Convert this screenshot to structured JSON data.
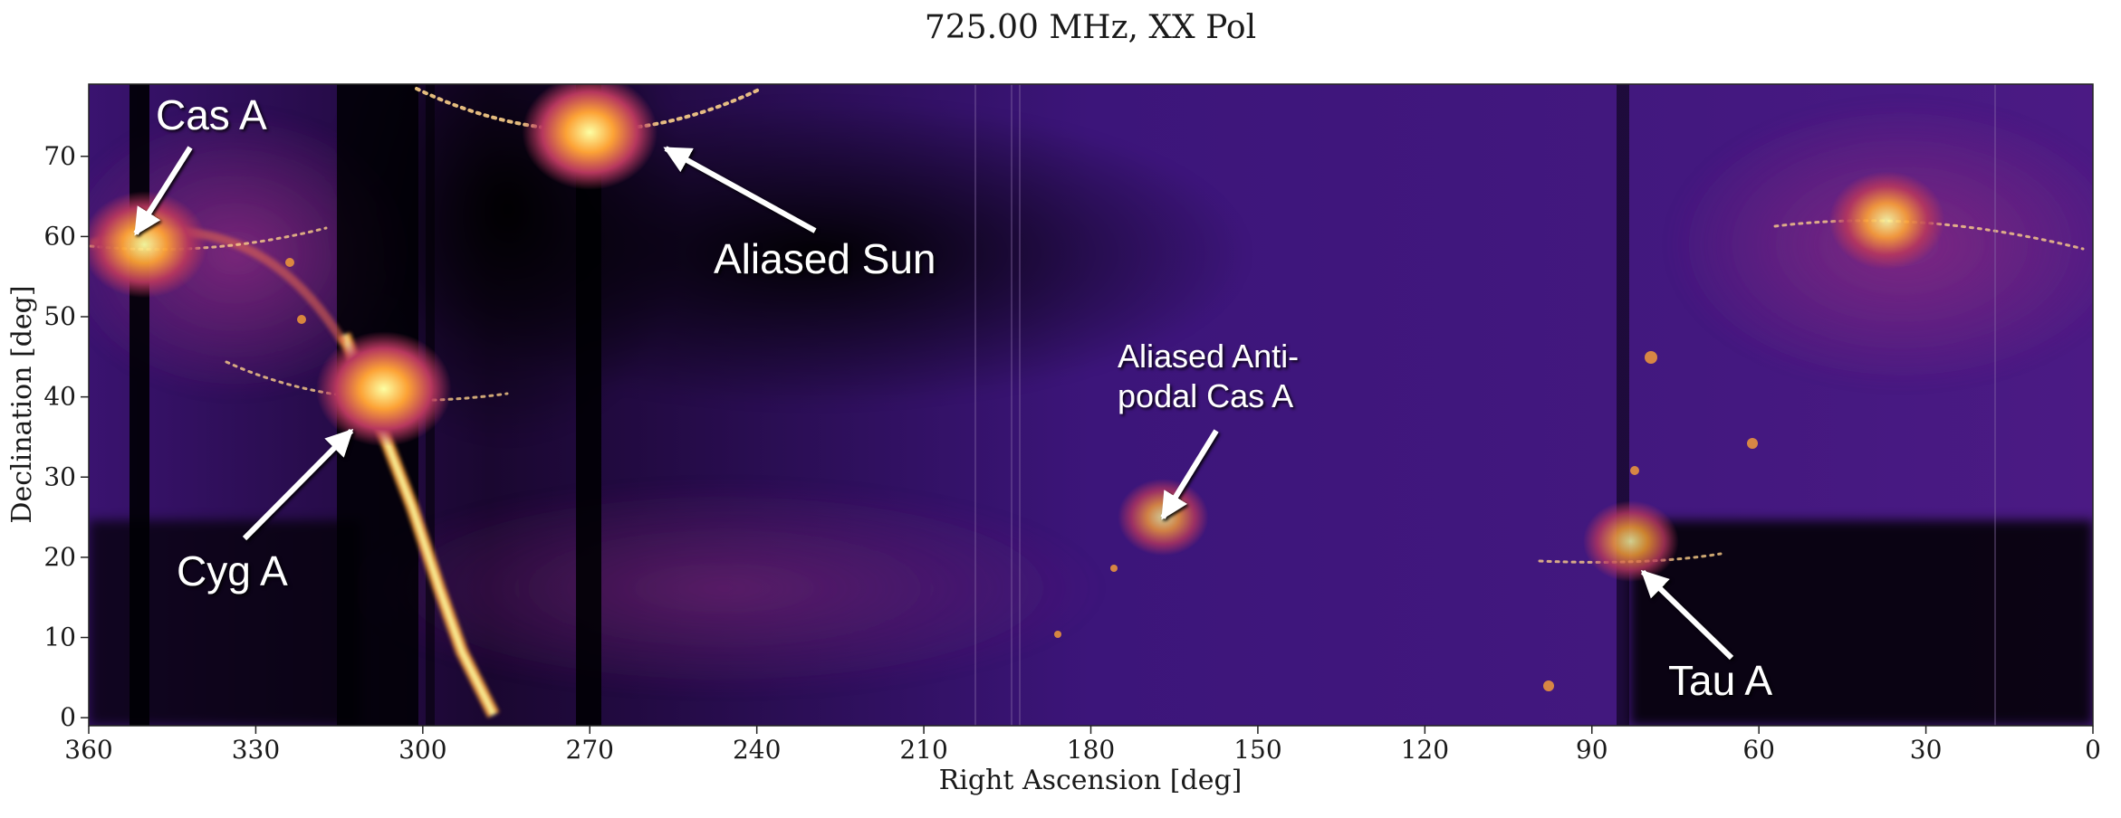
{
  "chart_data": {
    "type": "heatmap",
    "title": "725.00 MHz, XX Pol",
    "xlabel": "Right Ascension [deg]",
    "ylabel": "Declination [deg]",
    "xlim": [
      360,
      0
    ],
    "ylim": [
      -1,
      79
    ],
    "xticks": [
      360,
      330,
      300,
      270,
      240,
      210,
      180,
      150,
      120,
      90,
      60,
      30,
      0
    ],
    "yticks": [
      0,
      10,
      20,
      30,
      40,
      50,
      60,
      70
    ],
    "colormap": [
      "#000004",
      "#2a0b5a",
      "#4a1883",
      "#8a2a82",
      "#d9534a",
      "#fca236",
      "#fcffa4"
    ],
    "bright_sources": [
      {
        "ra": 350,
        "dec": 59,
        "intensity": 0.9
      },
      {
        "ra": 307,
        "dec": 41,
        "intensity": 1.0
      },
      {
        "ra": 270,
        "dec": 73,
        "intensity": 1.0
      },
      {
        "ra": 167,
        "dec": 25,
        "intensity": 0.55
      },
      {
        "ra": 83,
        "dec": 22,
        "intensity": 0.6
      },
      {
        "ra": 37,
        "dec": 62,
        "intensity": 0.8
      }
    ],
    "annotations": [
      {
        "text": "Cas A",
        "ra": 350,
        "dec": 59
      },
      {
        "text": "Cyg A",
        "ra": 313,
        "dec": 38
      },
      {
        "text": "Aliased Sun",
        "ra": 258,
        "dec": 71
      },
      {
        "text": "Aliased Anti-",
        "ra": 167,
        "dec": 27
      },
      {
        "text": "podal Cas A",
        "ra": 167,
        "dec": 27
      },
      {
        "text": "Tau A",
        "ra": 83,
        "dec": 21
      }
    ]
  }
}
